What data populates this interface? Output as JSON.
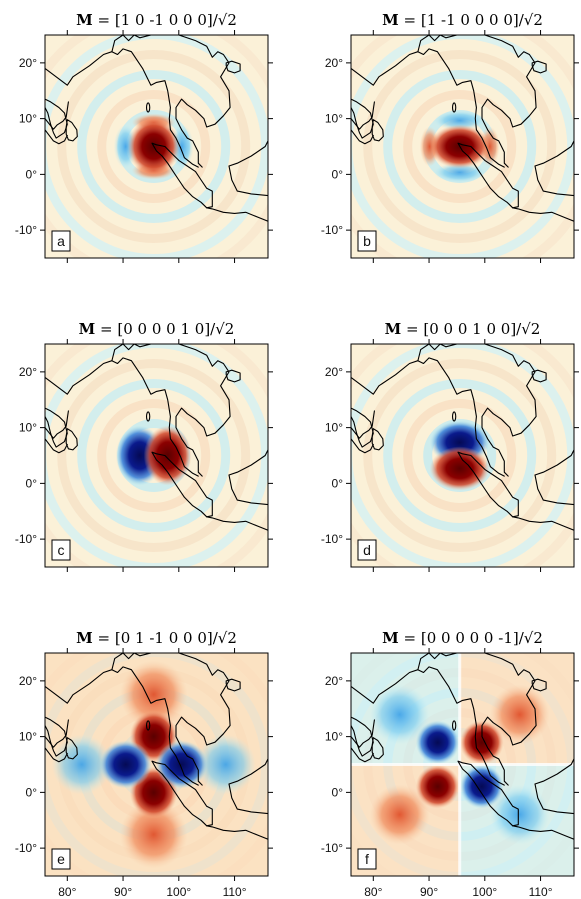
{
  "panels": [
    {
      "id": "a",
      "label": "a",
      "title_bold": "M",
      "title_rest": " = [1 0 -1 0 0 0]/√2",
      "pattern": "lobes_ns_red"
    },
    {
      "id": "b",
      "label": "b",
      "title_bold": "M",
      "title_rest": " = [1 -1 0 0 0 0]/√2",
      "pattern": "lobes_ew_red"
    },
    {
      "id": "c",
      "label": "c",
      "title_bold": "M",
      "title_rest": " = [0 0 0 0 1 0]/√2",
      "pattern": "dipole_ew"
    },
    {
      "id": "d",
      "label": "d",
      "title_bold": "M",
      "title_rest": " = [0 0 0 1 0 0]/√2",
      "pattern": "dipole_ns"
    },
    {
      "id": "e",
      "label": "e",
      "title_bold": "M",
      "title_rest": " = [0 1 -1 0 0 0]/√2",
      "pattern": "quad_cross"
    },
    {
      "id": "f",
      "label": "f",
      "title_bold": "M",
      "title_rest": " = [0 0 0 0 0 -1]/√2",
      "pattern": "quad_diag"
    }
  ],
  "axes": {
    "lat_ticks": [
      "20°",
      "10°",
      "0°",
      "-10°"
    ],
    "lon_ticks": [
      "80°",
      "90°",
      "100°",
      "110°"
    ]
  },
  "colors": {
    "positive": "#8b0000",
    "negative": "#0a1a8c",
    "positive_light": "#f4c8a0",
    "negative_light": "#a8e4f0",
    "background": "#fbf1d8",
    "coast": "#000000"
  }
}
